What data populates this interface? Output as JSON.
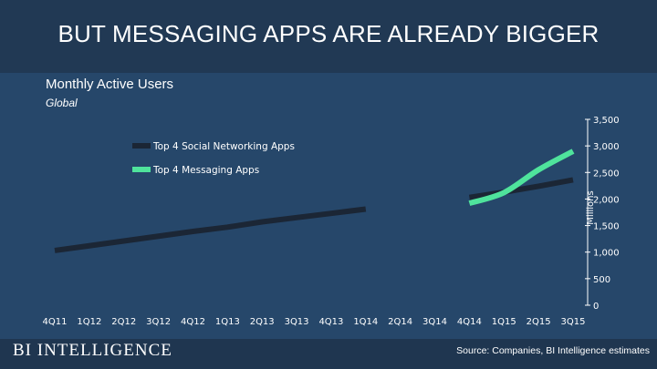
{
  "header": {
    "headline": "BUT MESSAGING APPS ARE ALREADY BIGGER"
  },
  "footer": {
    "logo_text": "BI INTELLIGENCE",
    "source": "Source: Companies, BI Intelligence estimates"
  },
  "colors": {
    "social": "#1b2635",
    "messaging": "#4fe39c",
    "background": "#26476a"
  },
  "chart_data": {
    "type": "line",
    "title": "Monthly Active Users",
    "subtitle": "Global",
    "xlabel": "",
    "ylabel": "Millions",
    "ylim": [
      0,
      3500
    ],
    "yticks": [
      0,
      500,
      1000,
      1500,
      2000,
      2500,
      3000,
      3500
    ],
    "ytick_labels": [
      "0",
      "500",
      "1,000",
      "1,500",
      "2,000",
      "2,500",
      "3,000",
      "3,500"
    ],
    "categories": [
      "4Q11",
      "1Q12",
      "2Q12",
      "3Q12",
      "4Q12",
      "1Q13",
      "2Q13",
      "3Q13",
      "4Q13",
      "1Q14",
      "2Q14",
      "3Q14",
      "4Q14",
      "1Q15",
      "2Q15",
      "3Q15"
    ],
    "grid": false,
    "legend_position": "top-left",
    "series": [
      {
        "name": "Top 4 Social Networking Apps",
        "color": "#1b2635",
        "values": [
          1030,
          1120,
          1210,
          1300,
          1390,
          1470,
          1570,
          1650,
          1730,
          1810,
          null,
          null,
          2030,
          2130,
          2240,
          2360
        ]
      },
      {
        "name": "Top 4 Messaging Apps",
        "color": "#4fe39c",
        "values": [
          null,
          null,
          null,
          null,
          null,
          null,
          null,
          null,
          null,
          null,
          null,
          null,
          1920,
          2120,
          2550,
          2900
        ]
      }
    ]
  }
}
